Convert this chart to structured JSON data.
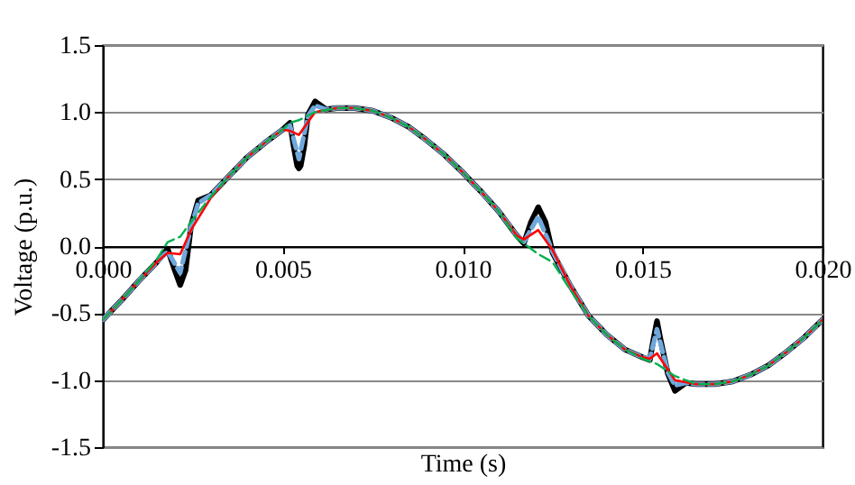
{
  "chart_data": {
    "type": "line",
    "xlabel": "Time (s)",
    "ylabel": "Voltage (p.u.)",
    "xlim": [
      0,
      0.02
    ],
    "ylim": [
      -1.5,
      1.5
    ],
    "xticks": [
      {
        "value": 0,
        "label": "0.000"
      },
      {
        "value": 0.005,
        "label": "0.005"
      },
      {
        "value": 0.01,
        "label": "0.010"
      },
      {
        "value": 0.015,
        "label": "0.015"
      },
      {
        "value": 0.02,
        "label": "0.020"
      }
    ],
    "yticks": [
      {
        "value": -1.5,
        "label": "-1.5"
      },
      {
        "value": -1,
        "label": "-1.0"
      },
      {
        "value": -0.5,
        "label": "-0.5"
      },
      {
        "value": 0,
        "label": "0.0"
      },
      {
        "value": 0.5,
        "label": "0.5"
      },
      {
        "value": 1,
        "label": "1.0"
      },
      {
        "value": 1.5,
        "label": "1.5"
      }
    ],
    "grid": "y",
    "marker": "none",
    "series": [
      {
        "color": "#000000",
        "line_style": "solid",
        "x": [
          0,
          0.0005,
          0.001,
          0.0015,
          0.0018,
          0.002,
          0.00215,
          0.0023,
          0.00245,
          0.00265,
          0.003,
          0.0035,
          0.004,
          0.0045,
          0.005,
          0.0052,
          0.0053,
          0.0054,
          0.00545,
          0.0055,
          0.0056,
          0.0057,
          0.0059,
          0.0062,
          0.0065,
          0.007,
          0.0075,
          0.008,
          0.0085,
          0.009,
          0.0095,
          0.01,
          0.0105,
          0.011,
          0.0115,
          0.0117,
          0.0119,
          0.0121,
          0.0123,
          0.0125,
          0.013,
          0.0135,
          0.014,
          0.0145,
          0.015,
          0.0152,
          0.0153,
          0.0154,
          0.0155,
          0.0157,
          0.0159,
          0.0162,
          0.0165,
          0.017,
          0.0175,
          0.018,
          0.0185,
          0.019,
          0.0195,
          0.02
        ],
        "values": [
          -0.55,
          -0.41,
          -0.26,
          -0.12,
          -0.02,
          -0.18,
          -0.29,
          -0.18,
          0.15,
          0.34,
          0.38,
          0.52,
          0.66,
          0.77,
          0.87,
          0.92,
          0.75,
          0.6,
          0.58,
          0.6,
          0.75,
          0.98,
          1.08,
          1.02,
          1.03,
          1.03,
          1.01,
          0.96,
          0.89,
          0.79,
          0.68,
          0.55,
          0.41,
          0.26,
          0.08,
          0.02,
          0.18,
          0.29,
          0.18,
          -0.05,
          -0.3,
          -0.52,
          -0.66,
          -0.77,
          -0.83,
          -0.85,
          -0.7,
          -0.56,
          -0.7,
          -0.95,
          -1.08,
          -1.02,
          -1.03,
          -1.03,
          -1.01,
          -0.96,
          -0.89,
          -0.79,
          -0.68,
          -0.55
        ]
      },
      {
        "color": "#6fa8dc",
        "line_style": "dashed",
        "x": [
          0,
          0.0005,
          0.001,
          0.0015,
          0.0018,
          0.00215,
          0.00245,
          0.00265,
          0.003,
          0.0035,
          0.004,
          0.0045,
          0.005,
          0.0052,
          0.00545,
          0.0057,
          0.0059,
          0.0062,
          0.0065,
          0.007,
          0.0075,
          0.008,
          0.0085,
          0.009,
          0.0095,
          0.01,
          0.0105,
          0.011,
          0.0115,
          0.0117,
          0.0121,
          0.0125,
          0.013,
          0.0135,
          0.014,
          0.0145,
          0.015,
          0.0152,
          0.0154,
          0.0157,
          0.0159,
          0.0162,
          0.0165,
          0.017,
          0.0175,
          0.018,
          0.0185,
          0.019,
          0.0195,
          0.02
        ],
        "values": [
          -0.55,
          -0.41,
          -0.26,
          -0.12,
          -0.04,
          -0.2,
          0.14,
          0.32,
          0.38,
          0.52,
          0.66,
          0.77,
          0.87,
          0.9,
          0.65,
          0.97,
          1.05,
          1.02,
          1.03,
          1.03,
          1.01,
          0.96,
          0.89,
          0.79,
          0.68,
          0.55,
          0.41,
          0.26,
          0.08,
          0.03,
          0.22,
          -0.04,
          -0.3,
          -0.52,
          -0.66,
          -0.77,
          -0.83,
          -0.84,
          -0.62,
          -0.94,
          -1.04,
          -1.02,
          -1.03,
          -1.03,
          -1.01,
          -0.96,
          -0.89,
          -0.79,
          -0.68,
          -0.55
        ]
      },
      {
        "color": "#ff0000",
        "line_style": "solid",
        "x": [
          0,
          0.0005,
          0.001,
          0.0015,
          0.0018,
          0.00215,
          0.00245,
          0.003,
          0.0035,
          0.004,
          0.0045,
          0.005,
          0.0052,
          0.00545,
          0.0059,
          0.0065,
          0.007,
          0.0075,
          0.008,
          0.0085,
          0.009,
          0.0095,
          0.01,
          0.0105,
          0.011,
          0.0115,
          0.0117,
          0.0121,
          0.0125,
          0.013,
          0.0135,
          0.014,
          0.0145,
          0.015,
          0.0152,
          0.0154,
          0.0159,
          0.0165,
          0.017,
          0.0175,
          0.018,
          0.0185,
          0.019,
          0.0195,
          0.02
        ],
        "values": [
          -0.55,
          -0.41,
          -0.26,
          -0.12,
          -0.05,
          -0.06,
          0.12,
          0.36,
          0.52,
          0.66,
          0.77,
          0.87,
          0.86,
          0.83,
          1.0,
          1.03,
          1.03,
          1.01,
          0.96,
          0.89,
          0.79,
          0.68,
          0.55,
          0.41,
          0.26,
          0.08,
          0.05,
          0.12,
          -0.03,
          -0.3,
          -0.52,
          -0.66,
          -0.77,
          -0.83,
          -0.84,
          -0.8,
          -1.0,
          -1.03,
          -1.03,
          -1.01,
          -0.96,
          -0.89,
          -0.79,
          -0.68,
          -0.55
        ]
      },
      {
        "color": "#00b050",
        "line_style": "dashed",
        "x": [
          0,
          0.0005,
          0.001,
          0.0015,
          0.0018,
          0.00215,
          0.00245,
          0.003,
          0.0035,
          0.004,
          0.0045,
          0.005,
          0.0052,
          0.00545,
          0.0059,
          0.0065,
          0.007,
          0.0075,
          0.008,
          0.0085,
          0.009,
          0.0095,
          0.01,
          0.0105,
          0.011,
          0.0115,
          0.0121,
          0.0125,
          0.013,
          0.0135,
          0.014,
          0.0145,
          0.015,
          0.0154,
          0.0159,
          0.0165,
          0.017,
          0.0175,
          0.018,
          0.0185,
          0.019,
          0.0195,
          0.02
        ],
        "values": [
          -0.55,
          -0.41,
          -0.26,
          -0.1,
          0.03,
          0.07,
          0.18,
          0.37,
          0.52,
          0.66,
          0.77,
          0.87,
          0.92,
          0.94,
          1.0,
          1.03,
          1.03,
          1.01,
          0.96,
          0.89,
          0.79,
          0.68,
          0.55,
          0.41,
          0.26,
          0.06,
          -0.06,
          -0.12,
          -0.33,
          -0.52,
          -0.66,
          -0.77,
          -0.84,
          -0.88,
          -0.97,
          -1.03,
          -1.03,
          -1.01,
          -0.96,
          -0.89,
          -0.79,
          -0.68,
          -0.55
        ]
      }
    ]
  }
}
